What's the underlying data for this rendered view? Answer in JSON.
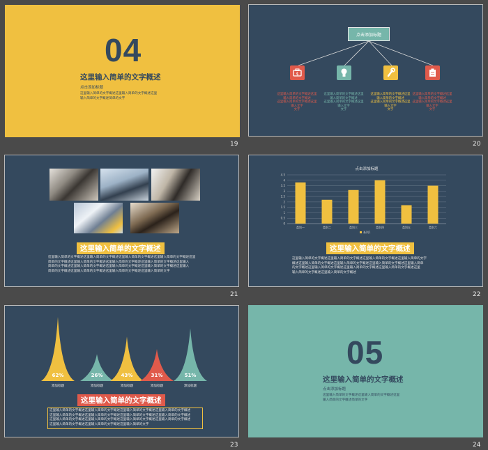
{
  "slides": {
    "s19": {
      "number": "19",
      "big": "04",
      "title": "这里输入简单的文字概述",
      "subtitle": "点击添加标题",
      "body": "这里输入简单的文字概述这里输入简单的文字概述这里\n输入简单的文字概述简单的文字"
    },
    "s20": {
      "number": "20",
      "top_label": "点击添加标题",
      "items": [
        {
          "icon": "briefcase-icon",
          "color": "#e05a4b",
          "text": "这里输入简单的文字概述这里\n输入简单的文字概述\n这里输入简单的文字概述这里\n输入文字\n文字"
        },
        {
          "icon": "lightbulb-icon",
          "color": "#76b6aa",
          "text": "这里输入简单的文字概述这里\n输入简单的文字概述\n这里输入简单的文字概述这里\n输入文字\n文字"
        },
        {
          "icon": "wrench-icon",
          "color": "#f0c040",
          "text": "这里输入简单的文字概述这里\n输入简单的文字概述\n这里输入简单的文字概述这里\n输入文字\n文字"
        },
        {
          "icon": "clipboard-icon",
          "color": "#e05a4b",
          "text": "这里输入简单的文字概述这里\n输入简单的文字概述\n这里输入简单的文字概述这里\n输入文字\n文字"
        }
      ]
    },
    "s21": {
      "number": "21",
      "title": "这里输入简单的文字概述",
      "body": "这里输入简单的文字概述这里输入简单的文字概述这里输入简单的文字概述这里输入简单的文字概述这里\n简单的文字概述这里输入简单的文字概述这里输入简单的文字概述这里输入简单的文字概述这里输入\n简单的文字概述这里输入简单的文字概述这里输入简单的文字概述这里输入简单的文字概述这里输入\n简单的文字概述这里输入简单的文字概述这里输入简单的文字概述这里输入简单的文字"
    },
    "s22": {
      "number": "22",
      "title": "这里输入简单的文字概述",
      "body": "这里输入简单的文字概述这里输入简单的文字概述这里输入简单的文字概述这里输入简单的文字\n概述这里输入简单的文字概述这里输入简单的文字概述这里输入简单的文字概述这里输入简单\n的文字概述这里输入简单的文字概述这里输入简单的文字概述这里输入简单的文字概述这里\n输入简单的文字概述这里输入简单的文字概述"
    },
    "s23": {
      "number": "23",
      "title": "这里输入简单的文字概述",
      "body": "这里输入简单的文字概述这里输入简单的文字概述这里输入简单的文字概述这里输入简单的文字概述\n这里输入简单的文字概述这里输入简单的文字概述这里输入简单的文字概述这里输入简单的文字概述\n这里输入简单的文字概述这里输入简单的文字概述这里输入简单的文字概述这里输入简单的文字概述\n这里输入简单的文字概述这里输入简单的文字概述这里输入简单的文字"
    },
    "s24": {
      "number": "24",
      "big": "05",
      "title": "这里输入简单的文字概述",
      "subtitle": "点击添加标题",
      "body": "这里输入简单的文字概述这里输入简单的文字概述这里\n输入简单的文字概述简单的文字"
    }
  },
  "colors": {
    "navy": "#34495e",
    "yellow": "#f0c040",
    "teal": "#76b6aa",
    "red": "#e05a4b"
  },
  "chart_data": [
    {
      "type": "bar",
      "title": "点击添加标题",
      "categories": [
        "类别一",
        "类别二",
        "类别三",
        "类别四",
        "类别五",
        "类别六"
      ],
      "series": [
        {
          "name": "系列1",
          "values": [
            3.8,
            2.2,
            3.1,
            4.0,
            1.7,
            3.5
          ]
        }
      ],
      "ylim": [
        0,
        4.5
      ],
      "yticks": [
        "0",
        "0.5",
        "1",
        "1.5",
        "2",
        "2.5",
        "3",
        "3.5",
        "4",
        "4.5"
      ],
      "grid": true,
      "legend": "bottom",
      "color": "#f0c040"
    },
    {
      "type": "area",
      "categories": [
        "添加标题",
        "添加标题",
        "添加标题",
        "添加标题",
        "添加标题"
      ],
      "values": [
        62,
        26,
        43,
        31,
        51
      ],
      "value_labels": [
        "62%",
        "26%",
        "43%",
        "31%",
        "51%"
      ],
      "colors": [
        "#f0c040",
        "#76b6aa",
        "#f0c040",
        "#e05a4b",
        "#76b6aa"
      ]
    }
  ]
}
